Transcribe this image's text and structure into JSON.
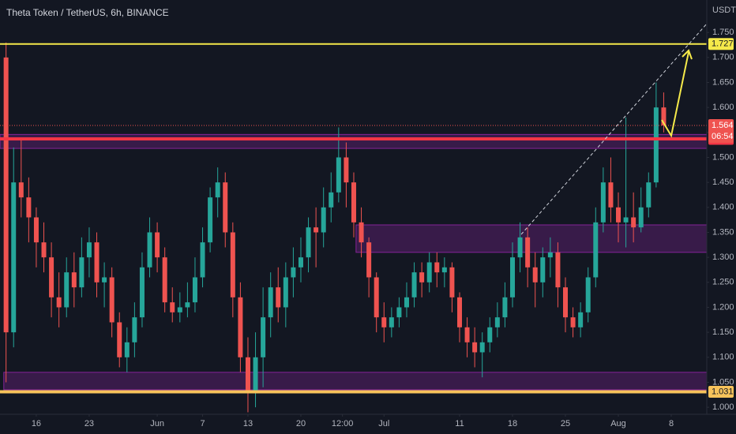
{
  "chart_data": {
    "type": "candlestick",
    "title": "Theta Token / TetherUS, 6h, BINANCE",
    "y_axis_label": "USDT",
    "countdown": "06:54",
    "up_color": "#26a69a",
    "down_color": "#ef5350",
    "x": [
      11,
      12,
      13,
      14,
      15,
      16,
      17,
      18,
      19,
      20,
      21,
      22,
      23,
      24,
      25,
      26,
      27,
      28,
      29,
      30,
      31,
      32,
      33,
      34,
      35,
      36,
      37,
      38,
      39,
      40,
      41,
      42,
      43,
      44,
      45,
      46,
      47,
      48,
      49,
      50,
      51,
      52,
      53,
      54,
      55,
      56,
      57,
      58,
      59,
      60,
      61,
      62,
      63,
      64,
      65,
      66,
      67,
      68,
      69,
      70,
      71,
      72,
      73,
      74,
      75,
      76,
      77,
      78,
      79,
      80,
      81,
      82,
      83,
      84,
      85,
      86,
      87,
      88,
      89,
      90,
      91,
      92,
      93,
      94,
      95,
      96,
      97,
      98
    ],
    "open": [
      1.7,
      1.15,
      1.45,
      1.42,
      1.38,
      1.33,
      1.3,
      1.22,
      1.2,
      1.27,
      1.24,
      1.3,
      1.33,
      1.25,
      1.26,
      1.17,
      1.1,
      1.13,
      1.18,
      1.28,
      1.35,
      1.3,
      1.21,
      1.19,
      1.2,
      1.21,
      1.26,
      1.33,
      1.42,
      1.45,
      1.35,
      1.22,
      1.1,
      1.03,
      1.1,
      1.18,
      1.24,
      1.2,
      1.26,
      1.28,
      1.3,
      1.36,
      1.35,
      1.4,
      1.43,
      1.5,
      1.45,
      1.37,
      1.33,
      1.26,
      1.18,
      1.16,
      1.18,
      1.2,
      1.22,
      1.27,
      1.25,
      1.29,
      1.27,
      1.28,
      1.22,
      1.16,
      1.13,
      1.11,
      1.13,
      1.16,
      1.18,
      1.22,
      1.3,
      1.34,
      1.28,
      1.25,
      1.3,
      1.31,
      1.24,
      1.18,
      1.16,
      1.19,
      1.26,
      1.37,
      1.45,
      1.4,
      1.37,
      1.38,
      1.36,
      1.4,
      1.45,
      1.6
    ],
    "high": [
      1.73,
      1.52,
      1.54,
      1.46,
      1.4,
      1.37,
      1.33,
      1.27,
      1.3,
      1.31,
      1.34,
      1.36,
      1.35,
      1.29,
      1.28,
      1.19,
      1.16,
      1.21,
      1.31,
      1.38,
      1.37,
      1.32,
      1.24,
      1.23,
      1.25,
      1.3,
      1.36,
      1.44,
      1.48,
      1.47,
      1.37,
      1.25,
      1.14,
      1.15,
      1.24,
      1.27,
      1.28,
      1.29,
      1.32,
      1.34,
      1.38,
      1.4,
      1.44,
      1.47,
      1.56,
      1.53,
      1.47,
      1.4,
      1.34,
      1.27,
      1.21,
      1.2,
      1.22,
      1.25,
      1.29,
      1.29,
      1.31,
      1.31,
      1.3,
      1.29,
      1.23,
      1.18,
      1.16,
      1.15,
      1.18,
      1.21,
      1.25,
      1.33,
      1.37,
      1.36,
      1.31,
      1.32,
      1.34,
      1.33,
      1.26,
      1.2,
      1.21,
      1.28,
      1.4,
      1.48,
      1.5,
      1.43,
      1.58,
      1.43,
      1.44,
      1.47,
      1.65,
      1.63
    ],
    "low": [
      1.05,
      1.12,
      1.38,
      1.33,
      1.28,
      1.27,
      1.18,
      1.16,
      1.18,
      1.2,
      1.22,
      1.26,
      1.22,
      1.2,
      1.14,
      1.08,
      1.07,
      1.1,
      1.16,
      1.26,
      1.27,
      1.19,
      1.17,
      1.17,
      1.18,
      1.19,
      1.24,
      1.31,
      1.38,
      1.32,
      1.18,
      1.07,
      0.99,
      1.0,
      1.04,
      1.14,
      1.17,
      1.16,
      1.22,
      1.25,
      1.27,
      1.28,
      1.32,
      1.37,
      1.41,
      1.4,
      1.34,
      1.3,
      1.22,
      1.15,
      1.13,
      1.14,
      1.16,
      1.18,
      1.2,
      1.22,
      1.23,
      1.24,
      1.24,
      1.19,
      1.13,
      1.1,
      1.08,
      1.06,
      1.11,
      1.14,
      1.16,
      1.2,
      1.27,
      1.24,
      1.2,
      1.22,
      1.26,
      1.2,
      1.15,
      1.14,
      1.14,
      1.17,
      1.24,
      1.35,
      1.37,
      1.33,
      1.32,
      1.33,
      1.35,
      1.38,
      1.44,
      1.55
    ],
    "close": [
      1.15,
      1.45,
      1.42,
      1.38,
      1.33,
      1.3,
      1.22,
      1.2,
      1.27,
      1.24,
      1.3,
      1.33,
      1.25,
      1.26,
      1.17,
      1.1,
      1.13,
      1.18,
      1.28,
      1.35,
      1.3,
      1.21,
      1.19,
      1.2,
      1.21,
      1.26,
      1.33,
      1.42,
      1.45,
      1.35,
      1.22,
      1.1,
      1.03,
      1.1,
      1.18,
      1.24,
      1.2,
      1.26,
      1.28,
      1.3,
      1.36,
      1.35,
      1.4,
      1.43,
      1.5,
      1.45,
      1.37,
      1.33,
      1.26,
      1.18,
      1.16,
      1.18,
      1.2,
      1.22,
      1.27,
      1.25,
      1.29,
      1.27,
      1.28,
      1.22,
      1.16,
      1.13,
      1.11,
      1.13,
      1.16,
      1.18,
      1.22,
      1.3,
      1.34,
      1.28,
      1.25,
      1.3,
      1.31,
      1.24,
      1.18,
      1.16,
      1.19,
      1.26,
      1.37,
      1.45,
      1.4,
      1.37,
      1.38,
      1.36,
      1.4,
      1.45,
      1.6,
      1.564
    ],
    "xlim": [
      10.2,
      103.7
    ],
    "ylim": [
      0.986,
      1.815
    ],
    "xticks": [
      {
        "value": 15,
        "label": "16"
      },
      {
        "value": 22,
        "label": "23"
      },
      {
        "value": 31,
        "label": "Jun"
      },
      {
        "value": 37,
        "label": "7"
      },
      {
        "value": 43,
        "label": "13"
      },
      {
        "value": 50,
        "label": "20"
      },
      {
        "value": 55.5,
        "label": "12:00"
      },
      {
        "value": 61,
        "label": "Jul"
      },
      {
        "value": 71,
        "label": "11"
      },
      {
        "value": 78,
        "label": "18"
      },
      {
        "value": 85,
        "label": "25"
      },
      {
        "value": 92,
        "label": "Aug"
      },
      {
        "value": 99,
        "label": "8"
      }
    ],
    "yticks": [
      {
        "value": 1.0,
        "label": "1.000"
      },
      {
        "value": 1.05,
        "label": "1.050"
      },
      {
        "value": 1.1,
        "label": "1.100"
      },
      {
        "value": 1.15,
        "label": "1.150"
      },
      {
        "value": 1.2,
        "label": "1.200"
      },
      {
        "value": 1.25,
        "label": "1.250"
      },
      {
        "value": 1.3,
        "label": "1.300"
      },
      {
        "value": 1.35,
        "label": "1.350"
      },
      {
        "value": 1.4,
        "label": "1.400"
      },
      {
        "value": 1.45,
        "label": "1.450"
      },
      {
        "value": 1.5,
        "label": "1.500"
      },
      {
        "value": 1.55,
        "label": "1.550"
      },
      {
        "value": 1.6,
        "label": "1.600"
      },
      {
        "value": 1.65,
        "label": "1.650"
      },
      {
        "value": 1.7,
        "label": "1.700"
      },
      {
        "value": 1.75,
        "label": "1.750"
      }
    ],
    "zones": [
      {
        "start": 10.2,
        "low": 1.518,
        "high": 1.546,
        "color": "#9c27b0"
      },
      {
        "start": 57.3,
        "low": 1.31,
        "high": 1.365,
        "color": "#9c27b0"
      },
      {
        "start": 10.7,
        "low": 1.035,
        "high": 1.07,
        "color": "#9c27b0"
      }
    ],
    "levels": [
      {
        "value": 1.727,
        "color": "#f5e94a",
        "text_color": "#131722",
        "width": 2
      },
      {
        "value": 1.537,
        "color": "#f23645",
        "text_color": "#ffffff",
        "width": 4
      },
      {
        "value": 1.031,
        "color": "#f7c35b",
        "text_color": "#131722",
        "width": 4
      }
    ]
  }
}
